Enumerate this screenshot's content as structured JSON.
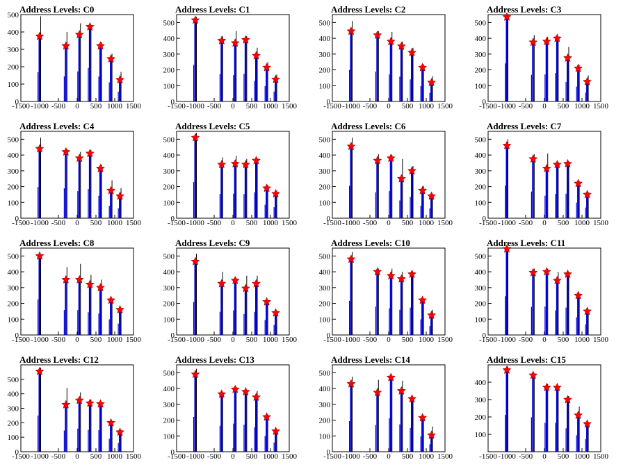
{
  "colors": {
    "bar": "#0000dd",
    "peak": "#000000",
    "marker": "#ff0000",
    "frame": "#000000"
  },
  "layout_grid": {
    "columns": 4,
    "rows": 4
  },
  "chart_data": [
    {
      "type": "bar",
      "title": "Address Levels: C0",
      "xlim": [
        -1500,
        1500
      ],
      "ylim": [
        0,
        500
      ],
      "xticks": [
        "-1500",
        "-1000",
        "-500",
        "0",
        "500",
        "1000",
        "1500"
      ],
      "yticks": [
        "0",
        "100",
        "200",
        "300",
        "400",
        "500"
      ],
      "x": [
        -1000,
        -300,
        60,
        340,
        620,
        900,
        1140
      ],
      "values": [
        375,
        320,
        385,
        430,
        320,
        245,
        125
      ],
      "peaks": [
        490,
        400,
        450,
        440,
        340,
        275,
        170
      ]
    },
    {
      "type": "bar",
      "title": "Address Levels: C1",
      "xlim": [
        -1500,
        1500
      ],
      "ylim": [
        0,
        550
      ],
      "xticks": [
        "-1500",
        "-1000",
        "-500",
        "0",
        "500",
        "1000",
        "1500"
      ],
      "yticks": [
        "0",
        "100",
        "200",
        "300",
        "400",
        "500"
      ],
      "x": [
        -1000,
        -300,
        60,
        340,
        620,
        900,
        1140
      ],
      "values": [
        515,
        385,
        370,
        390,
        290,
        215,
        140
      ],
      "peaks": [
        535,
        415,
        445,
        415,
        340,
        250,
        170
      ]
    },
    {
      "type": "bar",
      "title": "Address Levels: C2",
      "xlim": [
        -1500,
        1500
      ],
      "ylim": [
        0,
        550
      ],
      "xticks": [
        "-1500",
        "-1000",
        "-500",
        "0",
        "500",
        "1000",
        "1500"
      ],
      "yticks": [
        "0",
        "100",
        "200",
        "300",
        "400",
        "500"
      ],
      "x": [
        -1000,
        -300,
        60,
        340,
        620,
        900,
        1140
      ],
      "values": [
        445,
        420,
        380,
        350,
        310,
        215,
        120
      ],
      "peaks": [
        510,
        445,
        440,
        380,
        340,
        235,
        160
      ]
    },
    {
      "type": "bar",
      "title": "Address Levels: C3",
      "xlim": [
        -1500,
        1500
      ],
      "ylim": [
        0,
        550
      ],
      "xticks": [
        "-1500",
        "-1000",
        "-500",
        "0",
        "500",
        "1000",
        "1500"
      ],
      "yticks": [
        "0",
        "100",
        "200",
        "300",
        "400",
        "500"
      ],
      "x": [
        -1000,
        -300,
        60,
        340,
        620,
        900,
        1140
      ],
      "values": [
        535,
        375,
        380,
        400,
        275,
        210,
        125
      ],
      "peaks": [
        545,
        420,
        410,
        410,
        345,
        230,
        165
      ]
    },
    {
      "type": "bar",
      "title": "Address Levels: C4",
      "xlim": [
        -1500,
        1500
      ],
      "ylim": [
        0,
        550
      ],
      "xticks": [
        "-1500",
        "-1000",
        "-500",
        "0",
        "500",
        "1000",
        "1500"
      ],
      "yticks": [
        "0",
        "100",
        "200",
        "300",
        "400",
        "500"
      ],
      "x": [
        -1000,
        -300,
        60,
        340,
        620,
        900,
        1140
      ],
      "values": [
        440,
        420,
        380,
        410,
        315,
        175,
        140
      ],
      "peaks": [
        510,
        440,
        420,
        430,
        340,
        240,
        190
      ]
    },
    {
      "type": "bar",
      "title": "Address Levels: C5",
      "xlim": [
        -1500,
        1500
      ],
      "ylim": [
        0,
        550
      ],
      "xticks": [
        "-1500",
        "-1000",
        "-500",
        "0",
        "500",
        "1000",
        "1500"
      ],
      "yticks": [
        "0",
        "100",
        "200",
        "300",
        "400",
        "500"
      ],
      "x": [
        -1000,
        -300,
        60,
        340,
        620,
        900,
        1140
      ],
      "values": [
        510,
        340,
        345,
        340,
        365,
        190,
        155
      ],
      "peaks": [
        540,
        385,
        395,
        375,
        380,
        210,
        175
      ]
    },
    {
      "type": "bar",
      "title": "Address Levels: C6",
      "xlim": [
        -1500,
        1500
      ],
      "ylim": [
        0,
        550
      ],
      "xticks": [
        "-1500",
        "-1000",
        "-500",
        "0",
        "500",
        "1000",
        "1500"
      ],
      "yticks": [
        "0",
        "100",
        "200",
        "300",
        "400",
        "500"
      ],
      "x": [
        -1000,
        -300,
        60,
        340,
        620,
        900,
        1140
      ],
      "values": [
        455,
        365,
        380,
        250,
        300,
        175,
        140
      ],
      "peaks": [
        510,
        405,
        400,
        375,
        330,
        205,
        155
      ]
    },
    {
      "type": "bar",
      "title": "Address Levels: C7",
      "xlim": [
        -1500,
        1500
      ],
      "ylim": [
        0,
        550
      ],
      "xticks": [
        "-1500",
        "-1000",
        "-500",
        "0",
        "500",
        "1000",
        "1500"
      ],
      "yticks": [
        "0",
        "100",
        "200",
        "300",
        "400",
        "500"
      ],
      "x": [
        -1000,
        -300,
        60,
        340,
        620,
        900,
        1140
      ],
      "values": [
        460,
        375,
        315,
        340,
        345,
        220,
        150
      ],
      "peaks": [
        500,
        405,
        410,
        355,
        360,
        235,
        165
      ]
    },
    {
      "type": "bar",
      "title": "Address Levels: C8",
      "xlim": [
        -1500,
        1500
      ],
      "ylim": [
        0,
        550
      ],
      "xticks": [
        "-1500",
        "-1000",
        "-500",
        "0",
        "500",
        "1000",
        "1500"
      ],
      "yticks": [
        "0",
        "100",
        "200",
        "300",
        "400",
        "500"
      ],
      "x": [
        -1000,
        -300,
        60,
        340,
        620,
        900,
        1140
      ],
      "values": [
        500,
        350,
        350,
        320,
        300,
        220,
        160
      ],
      "peaks": [
        510,
        430,
        450,
        380,
        350,
        230,
        170
      ]
    },
    {
      "type": "bar",
      "title": "Address Levels: C9",
      "xlim": [
        -1500,
        1500
      ],
      "ylim": [
        0,
        550
      ],
      "xticks": [
        "-1500",
        "-1000",
        "-500",
        "0",
        "500",
        "1000",
        "1500"
      ],
      "yticks": [
        "0",
        "100",
        "200",
        "300",
        "400",
        "500"
      ],
      "x": [
        -1000,
        -300,
        60,
        340,
        620,
        900,
        1140
      ],
      "values": [
        465,
        325,
        345,
        295,
        325,
        210,
        140
      ],
      "peaks": [
        515,
        400,
        360,
        375,
        375,
        215,
        155
      ]
    },
    {
      "type": "bar",
      "title": "Address Levels: C10",
      "xlim": [
        -1500,
        1500
      ],
      "ylim": [
        0,
        550
      ],
      "xticks": [
        "-1500",
        "-1000",
        "-500",
        "0",
        "500",
        "1000",
        "1500"
      ],
      "yticks": [
        "0",
        "100",
        "200",
        "300",
        "400",
        "500"
      ],
      "x": [
        -1000,
        -300,
        60,
        340,
        620,
        900,
        1140
      ],
      "values": [
        480,
        400,
        375,
        355,
        385,
        220,
        125
      ],
      "peaks": [
        525,
        420,
        420,
        400,
        400,
        230,
        160
      ]
    },
    {
      "type": "bar",
      "title": "Address Levels: C11",
      "xlim": [
        -1500,
        1500
      ],
      "ylim": [
        0,
        550
      ],
      "xticks": [
        "-1500",
        "-1000",
        "-500",
        "0",
        "500",
        "1000",
        "1500"
      ],
      "yticks": [
        "0",
        "100",
        "200",
        "300",
        "400",
        "500"
      ],
      "x": [
        -1000,
        -300,
        60,
        340,
        620,
        900,
        1140
      ],
      "values": [
        545,
        395,
        400,
        345,
        385,
        250,
        150
      ],
      "peaks": [
        560,
        420,
        420,
        400,
        400,
        260,
        155
      ]
    },
    {
      "type": "bar",
      "title": "Address Levels: C12",
      "xlim": [
        -1500,
        1500
      ],
      "ylim": [
        0,
        600
      ],
      "xticks": [
        "-1500",
        "-1000",
        "-500",
        "0",
        "500",
        "1000",
        "1500"
      ],
      "yticks": [
        "0",
        "100",
        "200",
        "300",
        "400",
        "500"
      ],
      "x": [
        -1000,
        -300,
        60,
        340,
        620,
        900,
        1140
      ],
      "values": [
        555,
        325,
        355,
        335,
        330,
        200,
        135
      ],
      "peaks": [
        580,
        440,
        410,
        360,
        340,
        210,
        150
      ]
    },
    {
      "type": "bar",
      "title": "Address Levels: C13",
      "xlim": [
        -1500,
        1500
      ],
      "ylim": [
        0,
        550
      ],
      "xticks": [
        "-1500",
        "-1000",
        "-500",
        "0",
        "500",
        "1000",
        "1500"
      ],
      "yticks": [
        "0",
        "100",
        "200",
        "300",
        "400",
        "500"
      ],
      "x": [
        -1000,
        -300,
        60,
        340,
        620,
        900,
        1140
      ],
      "values": [
        490,
        365,
        395,
        380,
        345,
        220,
        130
      ],
      "peaks": [
        525,
        375,
        410,
        390,
        385,
        235,
        140
      ]
    },
    {
      "type": "bar",
      "title": "Address Levels: C14",
      "xlim": [
        -1500,
        1500
      ],
      "ylim": [
        0,
        550
      ],
      "xticks": [
        "-1500",
        "-1000",
        "-500",
        "0",
        "500",
        "1000",
        "1500"
      ],
      "yticks": [
        "0",
        "100",
        "200",
        "300",
        "400",
        "500"
      ],
      "x": [
        -1000,
        -300,
        60,
        340,
        620,
        900,
        1140
      ],
      "values": [
        430,
        375,
        470,
        385,
        335,
        215,
        105
      ],
      "peaks": [
        475,
        455,
        480,
        450,
        345,
        230,
        160
      ]
    },
    {
      "type": "bar",
      "title": "Address Levels: C15",
      "xlim": [
        -1500,
        1500
      ],
      "ylim": [
        0,
        500
      ],
      "xticks": [
        "-1500",
        "-1000",
        "-500",
        "0",
        "500",
        "1000",
        "1500"
      ],
      "yticks": [
        "100",
        "200",
        "300",
        "400"
      ],
      "x": [
        -1000,
        -300,
        60,
        340,
        620,
        900,
        1140
      ],
      "values": [
        470,
        440,
        370,
        370,
        300,
        210,
        160
      ],
      "peaks": [
        490,
        450,
        390,
        380,
        320,
        260,
        165
      ]
    }
  ]
}
